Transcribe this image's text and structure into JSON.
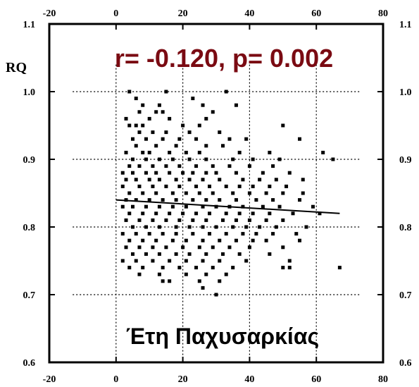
{
  "chart_data": {
    "type": "scatter",
    "ylabel": "RQ",
    "xlabel": "Έτη Παχυσαρκίας",
    "annotation": "r= -0.120, p= 0.002",
    "xlim": [
      -20,
      80
    ],
    "ylim": [
      0.6,
      1.1
    ],
    "x_ticks": [
      -20,
      0,
      20,
      40,
      60,
      80
    ],
    "y_ticks": [
      0.6,
      0.7,
      0.8,
      0.9,
      1.0,
      1.1
    ],
    "x_tick_labels": [
      "-20",
      "0",
      "20",
      "40",
      "60",
      "80"
    ],
    "y_tick_labels": [
      "0.6",
      "0.7",
      "0.8",
      "0.9",
      "1.0",
      "1.1"
    ],
    "grid": true,
    "points": [
      [
        4,
        1.0
      ],
      [
        15,
        1.0
      ],
      [
        33,
        1.0
      ],
      [
        6,
        0.99
      ],
      [
        23,
        0.99
      ],
      [
        8,
        0.98
      ],
      [
        13,
        0.98
      ],
      [
        26,
        0.98
      ],
      [
        36,
        0.98
      ],
      [
        7,
        0.97
      ],
      [
        12,
        0.97
      ],
      [
        14,
        0.97
      ],
      [
        29,
        0.97
      ],
      [
        3,
        0.96
      ],
      [
        10,
        0.96
      ],
      [
        16,
        0.96
      ],
      [
        27,
        0.96
      ],
      [
        4,
        0.95
      ],
      [
        6,
        0.95
      ],
      [
        8,
        0.95
      ],
      [
        20,
        0.95
      ],
      [
        25,
        0.95
      ],
      [
        50,
        0.95
      ],
      [
        7,
        0.94
      ],
      [
        11,
        0.94
      ],
      [
        15,
        0.94
      ],
      [
        22,
        0.94
      ],
      [
        31,
        0.94
      ],
      [
        5,
        0.93
      ],
      [
        9,
        0.93
      ],
      [
        14,
        0.93
      ],
      [
        19,
        0.93
      ],
      [
        24,
        0.93
      ],
      [
        34,
        0.93
      ],
      [
        39,
        0.93
      ],
      [
        55,
        0.93
      ],
      [
        6,
        0.92
      ],
      [
        12,
        0.92
      ],
      [
        18,
        0.92
      ],
      [
        27,
        0.92
      ],
      [
        32,
        0.92
      ],
      [
        3,
        0.91
      ],
      [
        8,
        0.91
      ],
      [
        10,
        0.91
      ],
      [
        16,
        0.91
      ],
      [
        21,
        0.91
      ],
      [
        25,
        0.91
      ],
      [
        37,
        0.91
      ],
      [
        46,
        0.91
      ],
      [
        62,
        0.91
      ],
      [
        5,
        0.9
      ],
      [
        9,
        0.9
      ],
      [
        13,
        0.9
      ],
      [
        17,
        0.9
      ],
      [
        22,
        0.9
      ],
      [
        27,
        0.9
      ],
      [
        35,
        0.9
      ],
      [
        41,
        0.9
      ],
      [
        49,
        0.9
      ],
      [
        65,
        0.9
      ],
      [
        4,
        0.89
      ],
      [
        7,
        0.89
      ],
      [
        11,
        0.89
      ],
      [
        15,
        0.89
      ],
      [
        19,
        0.89
      ],
      [
        24,
        0.89
      ],
      [
        29,
        0.89
      ],
      [
        34,
        0.89
      ],
      [
        40,
        0.89
      ],
      [
        47,
        0.89
      ],
      [
        2,
        0.88
      ],
      [
        5,
        0.88
      ],
      [
        9,
        0.88
      ],
      [
        12,
        0.88
      ],
      [
        16,
        0.88
      ],
      [
        20,
        0.88
      ],
      [
        23,
        0.88
      ],
      [
        27,
        0.88
      ],
      [
        30,
        0.88
      ],
      [
        36,
        0.88
      ],
      [
        44,
        0.88
      ],
      [
        52,
        0.88
      ],
      [
        3,
        0.87
      ],
      [
        6,
        0.87
      ],
      [
        10,
        0.87
      ],
      [
        13,
        0.87
      ],
      [
        18,
        0.87
      ],
      [
        22,
        0.87
      ],
      [
        26,
        0.87
      ],
      [
        31,
        0.87
      ],
      [
        38,
        0.87
      ],
      [
        43,
        0.87
      ],
      [
        48,
        0.87
      ],
      [
        56,
        0.87
      ],
      [
        2,
        0.86
      ],
      [
        7,
        0.86
      ],
      [
        11,
        0.86
      ],
      [
        15,
        0.86
      ],
      [
        19,
        0.86
      ],
      [
        24,
        0.86
      ],
      [
        28,
        0.86
      ],
      [
        33,
        0.86
      ],
      [
        37,
        0.86
      ],
      [
        41,
        0.86
      ],
      [
        46,
        0.86
      ],
      [
        51,
        0.86
      ],
      [
        4,
        0.85
      ],
      [
        8,
        0.85
      ],
      [
        12,
        0.85
      ],
      [
        17,
        0.85
      ],
      [
        21,
        0.85
      ],
      [
        25,
        0.85
      ],
      [
        29,
        0.85
      ],
      [
        35,
        0.85
      ],
      [
        40,
        0.85
      ],
      [
        45,
        0.85
      ],
      [
        50,
        0.85
      ],
      [
        56,
        0.85
      ],
      [
        3,
        0.84
      ],
      [
        6,
        0.84
      ],
      [
        10,
        0.84
      ],
      [
        14,
        0.84
      ],
      [
        18,
        0.84
      ],
      [
        23,
        0.84
      ],
      [
        27,
        0.84
      ],
      [
        31,
        0.84
      ],
      [
        36,
        0.84
      ],
      [
        42,
        0.84
      ],
      [
        47,
        0.84
      ],
      [
        55,
        0.84
      ],
      [
        2,
        0.83
      ],
      [
        5,
        0.83
      ],
      [
        9,
        0.83
      ],
      [
        13,
        0.83
      ],
      [
        17,
        0.83
      ],
      [
        21,
        0.83
      ],
      [
        26,
        0.83
      ],
      [
        30,
        0.83
      ],
      [
        34,
        0.83
      ],
      [
        38,
        0.83
      ],
      [
        44,
        0.83
      ],
      [
        49,
        0.83
      ],
      [
        59,
        0.83
      ],
      [
        4,
        0.82
      ],
      [
        8,
        0.82
      ],
      [
        12,
        0.82
      ],
      [
        16,
        0.82
      ],
      [
        20,
        0.82
      ],
      [
        24,
        0.82
      ],
      [
        28,
        0.82
      ],
      [
        33,
        0.82
      ],
      [
        37,
        0.82
      ],
      [
        41,
        0.82
      ],
      [
        46,
        0.82
      ],
      [
        53,
        0.82
      ],
      [
        61,
        0.82
      ],
      [
        3,
        0.81
      ],
      [
        7,
        0.81
      ],
      [
        11,
        0.81
      ],
      [
        15,
        0.81
      ],
      [
        19,
        0.81
      ],
      [
        23,
        0.81
      ],
      [
        27,
        0.81
      ],
      [
        32,
        0.81
      ],
      [
        36,
        0.81
      ],
      [
        40,
        0.81
      ],
      [
        45,
        0.81
      ],
      [
        50,
        0.81
      ],
      [
        5,
        0.8
      ],
      [
        9,
        0.8
      ],
      [
        13,
        0.8
      ],
      [
        18,
        0.8
      ],
      [
        22,
        0.8
      ],
      [
        26,
        0.8
      ],
      [
        30,
        0.8
      ],
      [
        35,
        0.8
      ],
      [
        39,
        0.8
      ],
      [
        43,
        0.8
      ],
      [
        48,
        0.8
      ],
      [
        57,
        0.8
      ],
      [
        2,
        0.79
      ],
      [
        6,
        0.79
      ],
      [
        10,
        0.79
      ],
      [
        14,
        0.79
      ],
      [
        18,
        0.79
      ],
      [
        23,
        0.79
      ],
      [
        28,
        0.79
      ],
      [
        33,
        0.79
      ],
      [
        38,
        0.79
      ],
      [
        42,
        0.79
      ],
      [
        47,
        0.79
      ],
      [
        54,
        0.79
      ],
      [
        4,
        0.78
      ],
      [
        8,
        0.78
      ],
      [
        12,
        0.78
      ],
      [
        17,
        0.78
      ],
      [
        21,
        0.78
      ],
      [
        26,
        0.78
      ],
      [
        31,
        0.78
      ],
      [
        36,
        0.78
      ],
      [
        41,
        0.78
      ],
      [
        45,
        0.78
      ],
      [
        55,
        0.78
      ],
      [
        3,
        0.77
      ],
      [
        7,
        0.77
      ],
      [
        11,
        0.77
      ],
      [
        15,
        0.77
      ],
      [
        20,
        0.77
      ],
      [
        25,
        0.77
      ],
      [
        29,
        0.77
      ],
      [
        34,
        0.77
      ],
      [
        40,
        0.77
      ],
      [
        50,
        0.77
      ],
      [
        5,
        0.76
      ],
      [
        9,
        0.76
      ],
      [
        13,
        0.76
      ],
      [
        18,
        0.76
      ],
      [
        22,
        0.76
      ],
      [
        27,
        0.76
      ],
      [
        32,
        0.76
      ],
      [
        37,
        0.76
      ],
      [
        46,
        0.76
      ],
      [
        2,
        0.75
      ],
      [
        6,
        0.75
      ],
      [
        11,
        0.75
      ],
      [
        16,
        0.75
      ],
      [
        21,
        0.75
      ],
      [
        26,
        0.75
      ],
      [
        31,
        0.75
      ],
      [
        39,
        0.75
      ],
      [
        52,
        0.75
      ],
      [
        4,
        0.74
      ],
      [
        8,
        0.74
      ],
      [
        14,
        0.74
      ],
      [
        19,
        0.74
      ],
      [
        24,
        0.74
      ],
      [
        29,
        0.74
      ],
      [
        35,
        0.74
      ],
      [
        50,
        0.74
      ],
      [
        52,
        0.74
      ],
      [
        67,
        0.74
      ],
      [
        7,
        0.73
      ],
      [
        13,
        0.73
      ],
      [
        21,
        0.73
      ],
      [
        27,
        0.73
      ],
      [
        33,
        0.73
      ],
      [
        14,
        0.72
      ],
      [
        16,
        0.72
      ],
      [
        25,
        0.72
      ],
      [
        31,
        0.72
      ],
      [
        26,
        0.71
      ],
      [
        30,
        0.7
      ]
    ],
    "regression": {
      "x": [
        0,
        67
      ],
      "y": [
        0.84,
        0.82
      ]
    }
  }
}
